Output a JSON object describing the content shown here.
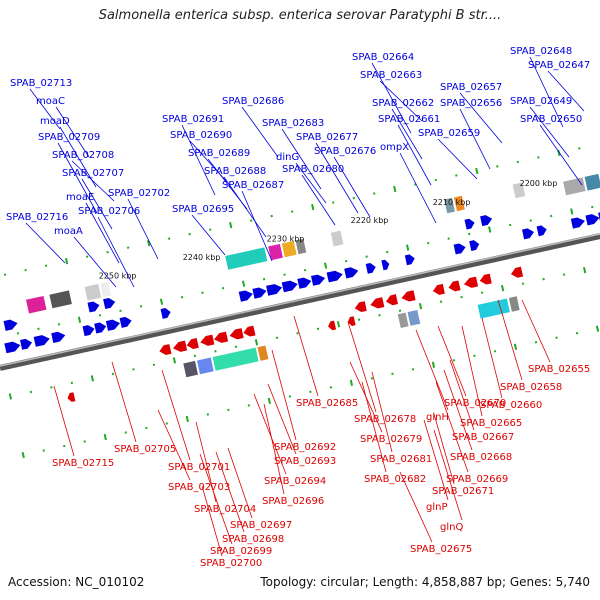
{
  "title": "Salmonella enterica subsp. enterica serovar Paratyphi B str....",
  "footer": {
    "accession": "Accession: NC_010102",
    "summary": "Topology: circular; Length: 4,858,887 bp; Genes: 5,740"
  },
  "colors": {
    "forward": "#0000dd",
    "reverse": "#dd0000",
    "backbone": "#777777",
    "tick": "#22aa22"
  },
  "ticks": [
    "2200 kbp",
    "2210 kbp",
    "2220 kbp",
    "2230 kbp",
    "2240 kbp",
    "2250 kbp"
  ],
  "forward_genes": [
    "SPAB_02713",
    "moaC",
    "moaD",
    "SPAB_02709",
    "SPAB_02708",
    "SPAB_02707",
    "moaE",
    "SPAB_02706",
    "SPAB_02716",
    "moaA",
    "SPAB_02702",
    "SPAB_02691",
    "SPAB_02690",
    "SPAB_02689",
    "SPAB_02688",
    "SPAB_02687",
    "SPAB_02695",
    "SPAB_02686",
    "SPAB_02683",
    "SPAB_02677",
    "dinG",
    "SPAB_02680",
    "SPAB_02676",
    "SPAB_02664",
    "SPAB_02663",
    "SPAB_02662",
    "SPAB_02661",
    "ompX",
    "SPAB_02659",
    "SPAB_02657",
    "SPAB_02656",
    "SPAB_02648",
    "SPAB_02647",
    "SPAB_02649",
    "SPAB_02650"
  ],
  "reverse_genes": [
    "SPAB_02715",
    "SPAB_02705",
    "SPAB_02701",
    "SPAB_02703",
    "SPAB_02704",
    "SPAB_02692",
    "SPAB_02693",
    "SPAB_02694",
    "SPAB_02696",
    "SPAB_02697",
    "SPAB_02698",
    "SPAB_02699",
    "SPAB_02700",
    "SPAB_02685",
    "SPAB_02678",
    "SPAB_02679",
    "SPAB_02681",
    "SPAB_02682",
    "SPAB_02670",
    "glnH",
    "SPAB_02665",
    "SPAB_02667",
    "SPAB_02668",
    "SPAB_02669",
    "SPAB_02671",
    "glnP",
    "glnQ",
    "SPAB_02675",
    "SPAB_02660",
    "SPAB_02658",
    "SPAB_02655"
  ]
}
